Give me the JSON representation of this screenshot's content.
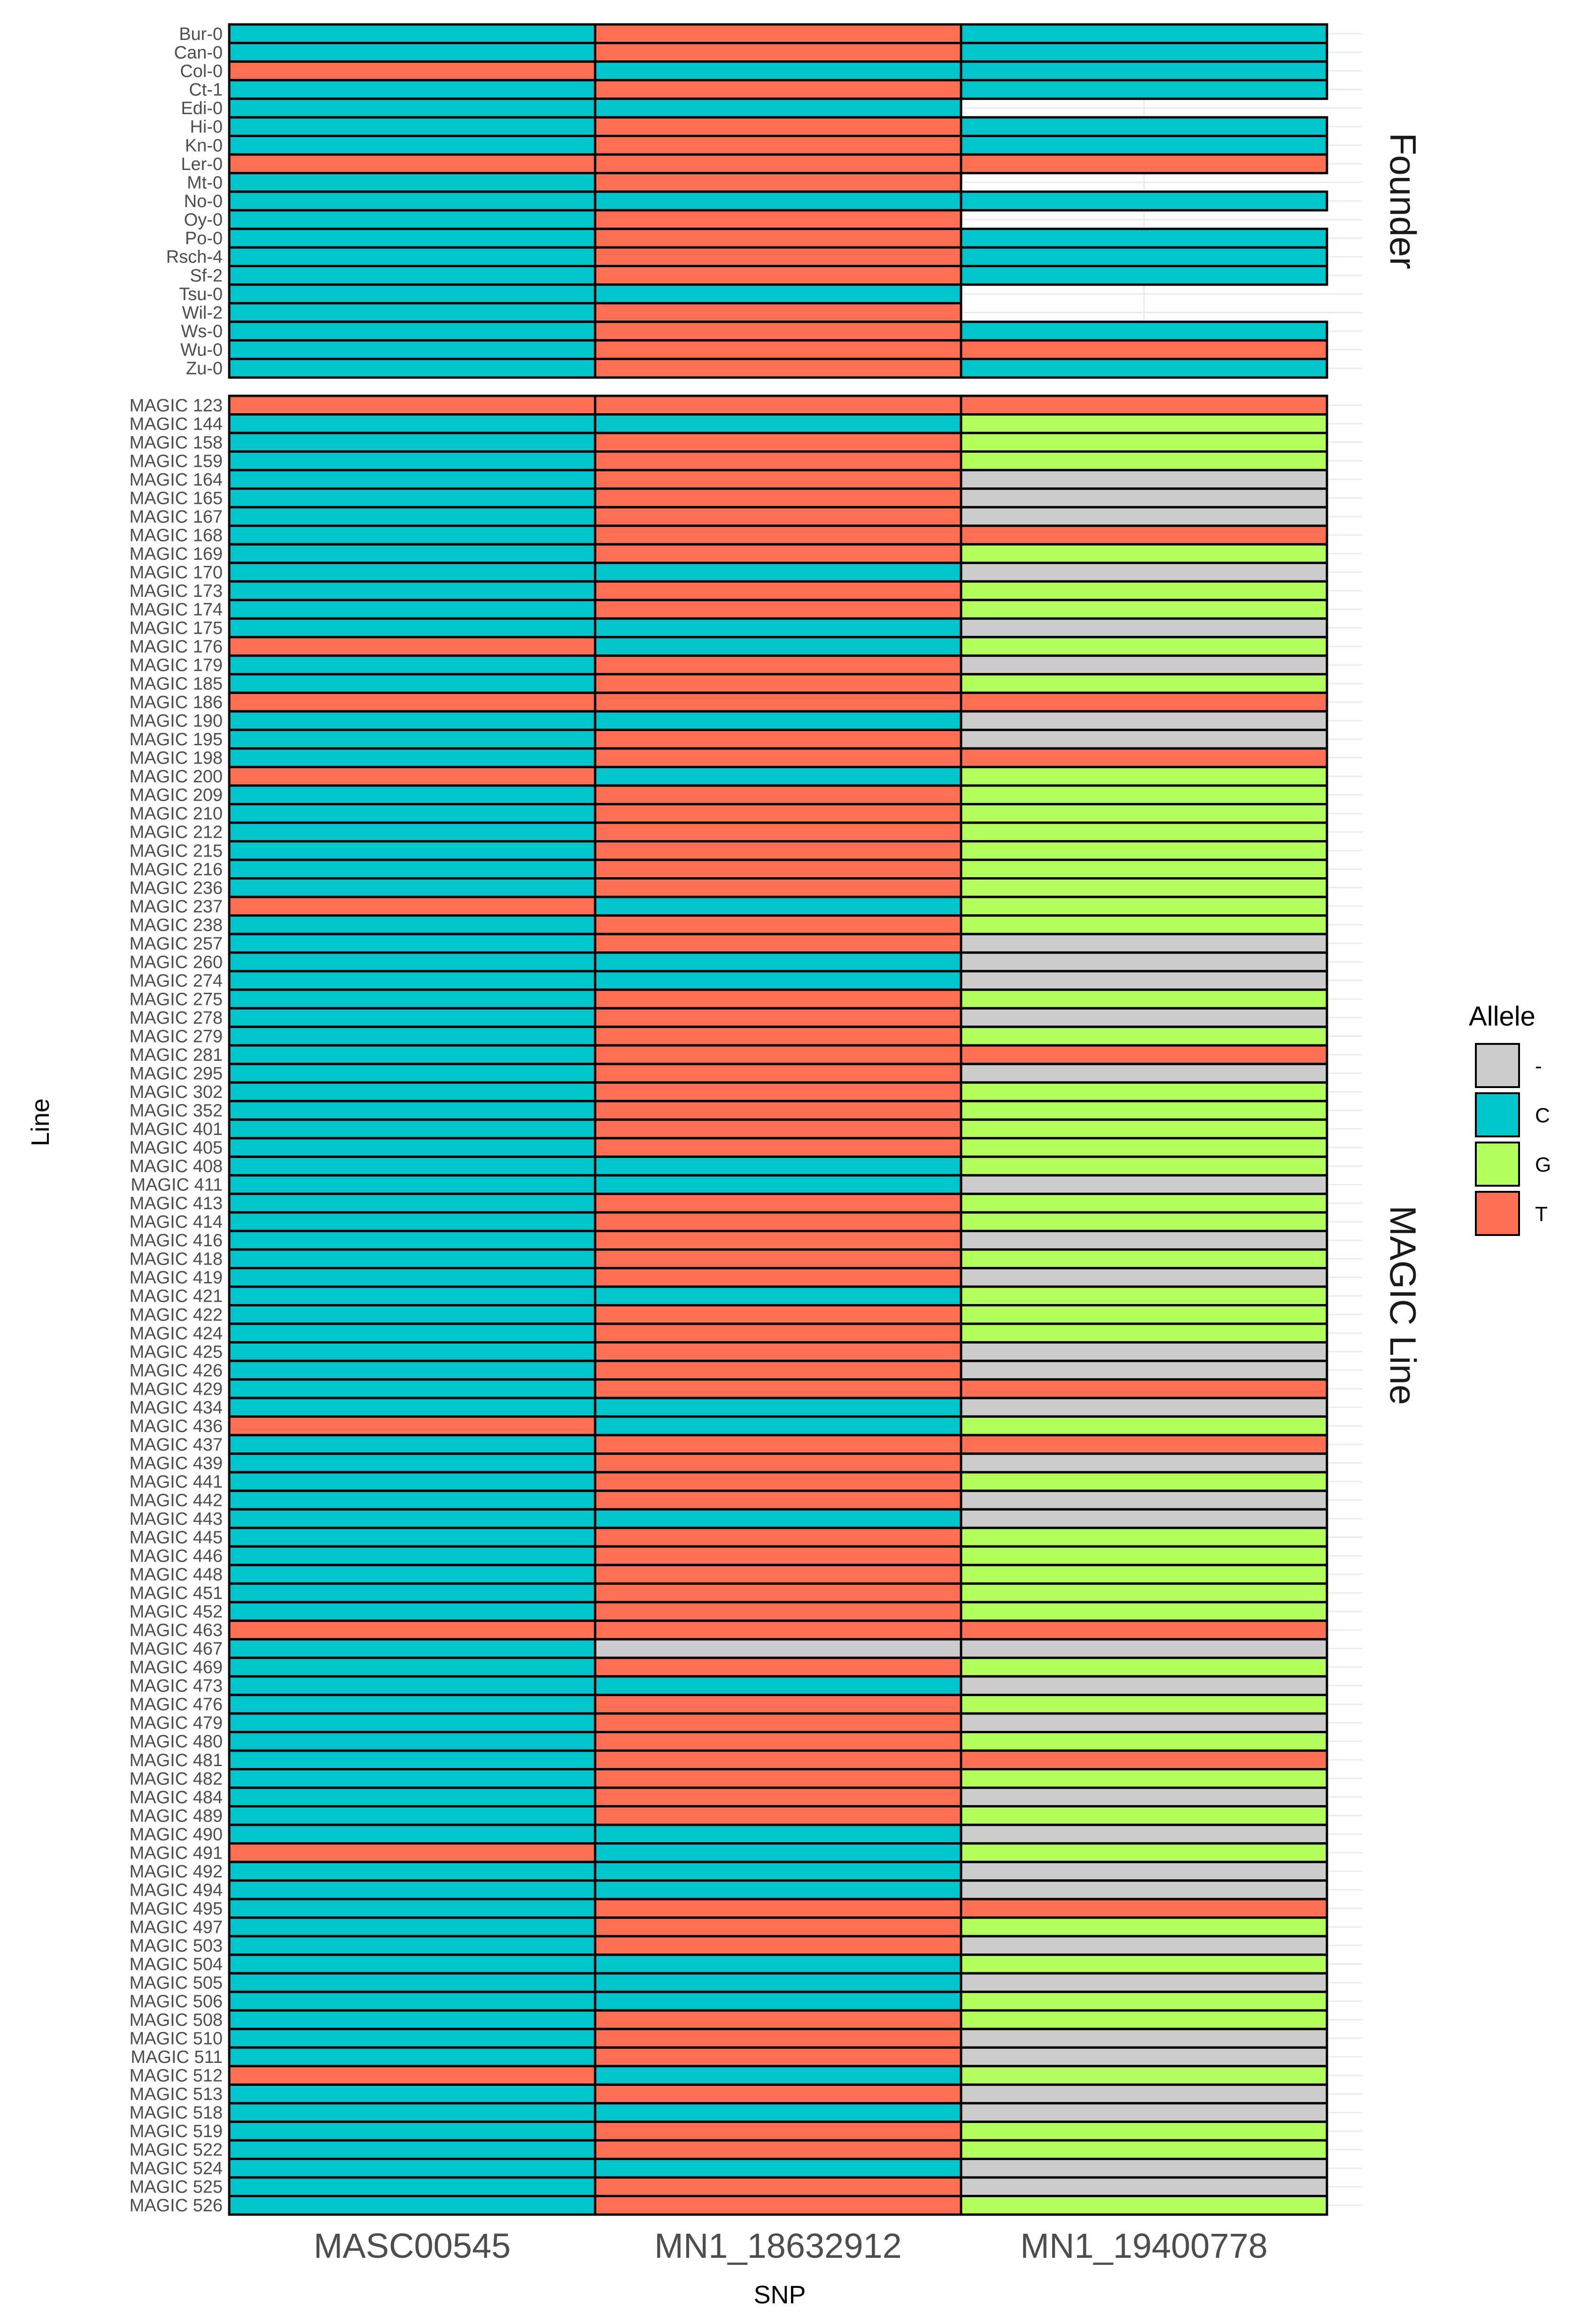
{
  "chart_data": {
    "type": "heatmap",
    "xlabel": "SNP",
    "ylabel": "Line",
    "snps": [
      "MASC00545",
      "MN1_18632912",
      "MN1_19400778"
    ],
    "legend": {
      "title": "Allele",
      "entries": [
        {
          "label": "-",
          "color": "#cccccc"
        },
        {
          "label": "C",
          "color": "#00c5cd"
        },
        {
          "label": "G",
          "color": "#b3ff5c"
        },
        {
          "label": "T",
          "color": "#ff6f53"
        }
      ]
    },
    "panels": [
      {
        "label": "Founder",
        "rows": [
          {
            "line": "Bur-0",
            "alleles": [
              "C",
              "T",
              "C"
            ]
          },
          {
            "line": "Can-0",
            "alleles": [
              "C",
              "T",
              "C"
            ]
          },
          {
            "line": "Col-0",
            "alleles": [
              "T",
              "C",
              "C"
            ]
          },
          {
            "line": "Ct-1",
            "alleles": [
              "C",
              "T",
              "C"
            ]
          },
          {
            "line": "Edi-0",
            "alleles": [
              "C",
              "C",
              null
            ]
          },
          {
            "line": "Hi-0",
            "alleles": [
              "C",
              "T",
              "C"
            ]
          },
          {
            "line": "Kn-0",
            "alleles": [
              "C",
              "T",
              "C"
            ]
          },
          {
            "line": "Ler-0",
            "alleles": [
              "T",
              "T",
              "T"
            ]
          },
          {
            "line": "Mt-0",
            "alleles": [
              "C",
              "T",
              null
            ]
          },
          {
            "line": "No-0",
            "alleles": [
              "C",
              "C",
              "C"
            ]
          },
          {
            "line": "Oy-0",
            "alleles": [
              "C",
              "T",
              null
            ]
          },
          {
            "line": "Po-0",
            "alleles": [
              "C",
              "T",
              "C"
            ]
          },
          {
            "line": "Rsch-4",
            "alleles": [
              "C",
              "T",
              "C"
            ]
          },
          {
            "line": "Sf-2",
            "alleles": [
              "C",
              "T",
              "C"
            ]
          },
          {
            "line": "Tsu-0",
            "alleles": [
              "C",
              "C",
              null
            ]
          },
          {
            "line": "Wil-2",
            "alleles": [
              "C",
              "T",
              null
            ]
          },
          {
            "line": "Ws-0",
            "alleles": [
              "C",
              "T",
              "C"
            ]
          },
          {
            "line": "Wu-0",
            "alleles": [
              "C",
              "T",
              "T"
            ]
          },
          {
            "line": "Zu-0",
            "alleles": [
              "C",
              "T",
              "C"
            ]
          }
        ]
      },
      {
        "label": "MAGIC Line",
        "rows": [
          {
            "line": "MAGIC 123",
            "alleles": [
              "T",
              "T",
              "T"
            ]
          },
          {
            "line": "MAGIC 144",
            "alleles": [
              "C",
              "C",
              "G"
            ]
          },
          {
            "line": "MAGIC 158",
            "alleles": [
              "C",
              "T",
              "G"
            ]
          },
          {
            "line": "MAGIC 159",
            "alleles": [
              "C",
              "T",
              "G"
            ]
          },
          {
            "line": "MAGIC 164",
            "alleles": [
              "C",
              "T",
              "-"
            ]
          },
          {
            "line": "MAGIC 165",
            "alleles": [
              "C",
              "T",
              "-"
            ]
          },
          {
            "line": "MAGIC 167",
            "alleles": [
              "C",
              "T",
              "-"
            ]
          },
          {
            "line": "MAGIC 168",
            "alleles": [
              "C",
              "T",
              "T"
            ]
          },
          {
            "line": "MAGIC 169",
            "alleles": [
              "C",
              "T",
              "G"
            ]
          },
          {
            "line": "MAGIC 170",
            "alleles": [
              "C",
              "C",
              "-"
            ]
          },
          {
            "line": "MAGIC 173",
            "alleles": [
              "C",
              "T",
              "G"
            ]
          },
          {
            "line": "MAGIC 174",
            "alleles": [
              "C",
              "T",
              "G"
            ]
          },
          {
            "line": "MAGIC 175",
            "alleles": [
              "C",
              "C",
              "-"
            ]
          },
          {
            "line": "MAGIC 176",
            "alleles": [
              "T",
              "C",
              "G"
            ]
          },
          {
            "line": "MAGIC 179",
            "alleles": [
              "C",
              "T",
              "-"
            ]
          },
          {
            "line": "MAGIC 185",
            "alleles": [
              "C",
              "T",
              "G"
            ]
          },
          {
            "line": "MAGIC 186",
            "alleles": [
              "T",
              "T",
              "T"
            ]
          },
          {
            "line": "MAGIC 190",
            "alleles": [
              "C",
              "C",
              "-"
            ]
          },
          {
            "line": "MAGIC 195",
            "alleles": [
              "C",
              "T",
              "-"
            ]
          },
          {
            "line": "MAGIC 198",
            "alleles": [
              "C",
              "T",
              "T"
            ]
          },
          {
            "line": "MAGIC 200",
            "alleles": [
              "T",
              "C",
              "G"
            ]
          },
          {
            "line": "MAGIC 209",
            "alleles": [
              "C",
              "T",
              "G"
            ]
          },
          {
            "line": "MAGIC 210",
            "alleles": [
              "C",
              "T",
              "G"
            ]
          },
          {
            "line": "MAGIC 212",
            "alleles": [
              "C",
              "T",
              "G"
            ]
          },
          {
            "line": "MAGIC 215",
            "alleles": [
              "C",
              "T",
              "G"
            ]
          },
          {
            "line": "MAGIC 216",
            "alleles": [
              "C",
              "T",
              "G"
            ]
          },
          {
            "line": "MAGIC 236",
            "alleles": [
              "C",
              "T",
              "G"
            ]
          },
          {
            "line": "MAGIC 237",
            "alleles": [
              "T",
              "C",
              "G"
            ]
          },
          {
            "line": "MAGIC 238",
            "alleles": [
              "C",
              "T",
              "G"
            ]
          },
          {
            "line": "MAGIC 257",
            "alleles": [
              "C",
              "T",
              "-"
            ]
          },
          {
            "line": "MAGIC 260",
            "alleles": [
              "C",
              "C",
              "-"
            ]
          },
          {
            "line": "MAGIC 274",
            "alleles": [
              "C",
              "C",
              "-"
            ]
          },
          {
            "line": "MAGIC 275",
            "alleles": [
              "C",
              "T",
              "G"
            ]
          },
          {
            "line": "MAGIC 278",
            "alleles": [
              "C",
              "T",
              "-"
            ]
          },
          {
            "line": "MAGIC 279",
            "alleles": [
              "C",
              "T",
              "G"
            ]
          },
          {
            "line": "MAGIC 281",
            "alleles": [
              "C",
              "T",
              "T"
            ]
          },
          {
            "line": "MAGIC 295",
            "alleles": [
              "C",
              "T",
              "-"
            ]
          },
          {
            "line": "MAGIC 302",
            "alleles": [
              "C",
              "T",
              "G"
            ]
          },
          {
            "line": "MAGIC 352",
            "alleles": [
              "C",
              "T",
              "G"
            ]
          },
          {
            "line": "MAGIC 401",
            "alleles": [
              "C",
              "T",
              "G"
            ]
          },
          {
            "line": "MAGIC 405",
            "alleles": [
              "C",
              "T",
              "G"
            ]
          },
          {
            "line": "MAGIC 408",
            "alleles": [
              "C",
              "C",
              "G"
            ]
          },
          {
            "line": "MAGIC 411",
            "alleles": [
              "C",
              "C",
              "-"
            ]
          },
          {
            "line": "MAGIC 413",
            "alleles": [
              "C",
              "T",
              "G"
            ]
          },
          {
            "line": "MAGIC 414",
            "alleles": [
              "C",
              "T",
              "G"
            ]
          },
          {
            "line": "MAGIC 416",
            "alleles": [
              "C",
              "T",
              "-"
            ]
          },
          {
            "line": "MAGIC 418",
            "alleles": [
              "C",
              "T",
              "G"
            ]
          },
          {
            "line": "MAGIC 419",
            "alleles": [
              "C",
              "T",
              "-"
            ]
          },
          {
            "line": "MAGIC 421",
            "alleles": [
              "C",
              "C",
              "G"
            ]
          },
          {
            "line": "MAGIC 422",
            "alleles": [
              "C",
              "T",
              "G"
            ]
          },
          {
            "line": "MAGIC 424",
            "alleles": [
              "C",
              "T",
              "G"
            ]
          },
          {
            "line": "MAGIC 425",
            "alleles": [
              "C",
              "T",
              "-"
            ]
          },
          {
            "line": "MAGIC 426",
            "alleles": [
              "C",
              "T",
              "-"
            ]
          },
          {
            "line": "MAGIC 429",
            "alleles": [
              "C",
              "T",
              "T"
            ]
          },
          {
            "line": "MAGIC 434",
            "alleles": [
              "C",
              "C",
              "-"
            ]
          },
          {
            "line": "MAGIC 436",
            "alleles": [
              "T",
              "C",
              "G"
            ]
          },
          {
            "line": "MAGIC 437",
            "alleles": [
              "C",
              "T",
              "T"
            ]
          },
          {
            "line": "MAGIC 439",
            "alleles": [
              "C",
              "T",
              "-"
            ]
          },
          {
            "line": "MAGIC 441",
            "alleles": [
              "C",
              "T",
              "G"
            ]
          },
          {
            "line": "MAGIC 442",
            "alleles": [
              "C",
              "T",
              "-"
            ]
          },
          {
            "line": "MAGIC 443",
            "alleles": [
              "C",
              "C",
              "-"
            ]
          },
          {
            "line": "MAGIC 445",
            "alleles": [
              "C",
              "T",
              "G"
            ]
          },
          {
            "line": "MAGIC 446",
            "alleles": [
              "C",
              "T",
              "G"
            ]
          },
          {
            "line": "MAGIC 448",
            "alleles": [
              "C",
              "T",
              "G"
            ]
          },
          {
            "line": "MAGIC 451",
            "alleles": [
              "C",
              "T",
              "G"
            ]
          },
          {
            "line": "MAGIC 452",
            "alleles": [
              "C",
              "T",
              "G"
            ]
          },
          {
            "line": "MAGIC 463",
            "alleles": [
              "T",
              "T",
              "T"
            ]
          },
          {
            "line": "MAGIC 467",
            "alleles": [
              "C",
              "-",
              "-"
            ]
          },
          {
            "line": "MAGIC 469",
            "alleles": [
              "C",
              "T",
              "G"
            ]
          },
          {
            "line": "MAGIC 473",
            "alleles": [
              "C",
              "C",
              "-"
            ]
          },
          {
            "line": "MAGIC 476",
            "alleles": [
              "C",
              "T",
              "G"
            ]
          },
          {
            "line": "MAGIC 479",
            "alleles": [
              "C",
              "T",
              "-"
            ]
          },
          {
            "line": "MAGIC 480",
            "alleles": [
              "C",
              "T",
              "G"
            ]
          },
          {
            "line": "MAGIC 481",
            "alleles": [
              "C",
              "T",
              "T"
            ]
          },
          {
            "line": "MAGIC 482",
            "alleles": [
              "C",
              "T",
              "G"
            ]
          },
          {
            "line": "MAGIC 484",
            "alleles": [
              "C",
              "T",
              "-"
            ]
          },
          {
            "line": "MAGIC 489",
            "alleles": [
              "C",
              "T",
              "G"
            ]
          },
          {
            "line": "MAGIC 490",
            "alleles": [
              "C",
              "C",
              "-"
            ]
          },
          {
            "line": "MAGIC 491",
            "alleles": [
              "T",
              "C",
              "G"
            ]
          },
          {
            "line": "MAGIC 492",
            "alleles": [
              "C",
              "C",
              "-"
            ]
          },
          {
            "line": "MAGIC 494",
            "alleles": [
              "C",
              "C",
              "-"
            ]
          },
          {
            "line": "MAGIC 495",
            "alleles": [
              "C",
              "T",
              "T"
            ]
          },
          {
            "line": "MAGIC 497",
            "alleles": [
              "C",
              "T",
              "G"
            ]
          },
          {
            "line": "MAGIC 503",
            "alleles": [
              "C",
              "T",
              "-"
            ]
          },
          {
            "line": "MAGIC 504",
            "alleles": [
              "C",
              "C",
              "G"
            ]
          },
          {
            "line": "MAGIC 505",
            "alleles": [
              "C",
              "C",
              "-"
            ]
          },
          {
            "line": "MAGIC 506",
            "alleles": [
              "C",
              "C",
              "G"
            ]
          },
          {
            "line": "MAGIC 508",
            "alleles": [
              "C",
              "T",
              "G"
            ]
          },
          {
            "line": "MAGIC 510",
            "alleles": [
              "C",
              "T",
              "-"
            ]
          },
          {
            "line": "MAGIC 511",
            "alleles": [
              "C",
              "T",
              "-"
            ]
          },
          {
            "line": "MAGIC 512",
            "alleles": [
              "T",
              "C",
              "G"
            ]
          },
          {
            "line": "MAGIC 513",
            "alleles": [
              "C",
              "T",
              "-"
            ]
          },
          {
            "line": "MAGIC 518",
            "alleles": [
              "C",
              "C",
              "-"
            ]
          },
          {
            "line": "MAGIC 519",
            "alleles": [
              "C",
              "T",
              "G"
            ]
          },
          {
            "line": "MAGIC 522",
            "alleles": [
              "C",
              "T",
              "G"
            ]
          },
          {
            "line": "MAGIC 524",
            "alleles": [
              "C",
              "C",
              "-"
            ]
          },
          {
            "line": "MAGIC 525",
            "alleles": [
              "C",
              "T",
              "-"
            ]
          },
          {
            "line": "MAGIC 526",
            "alleles": [
              "C",
              "T",
              "G"
            ]
          }
        ]
      }
    ]
  }
}
